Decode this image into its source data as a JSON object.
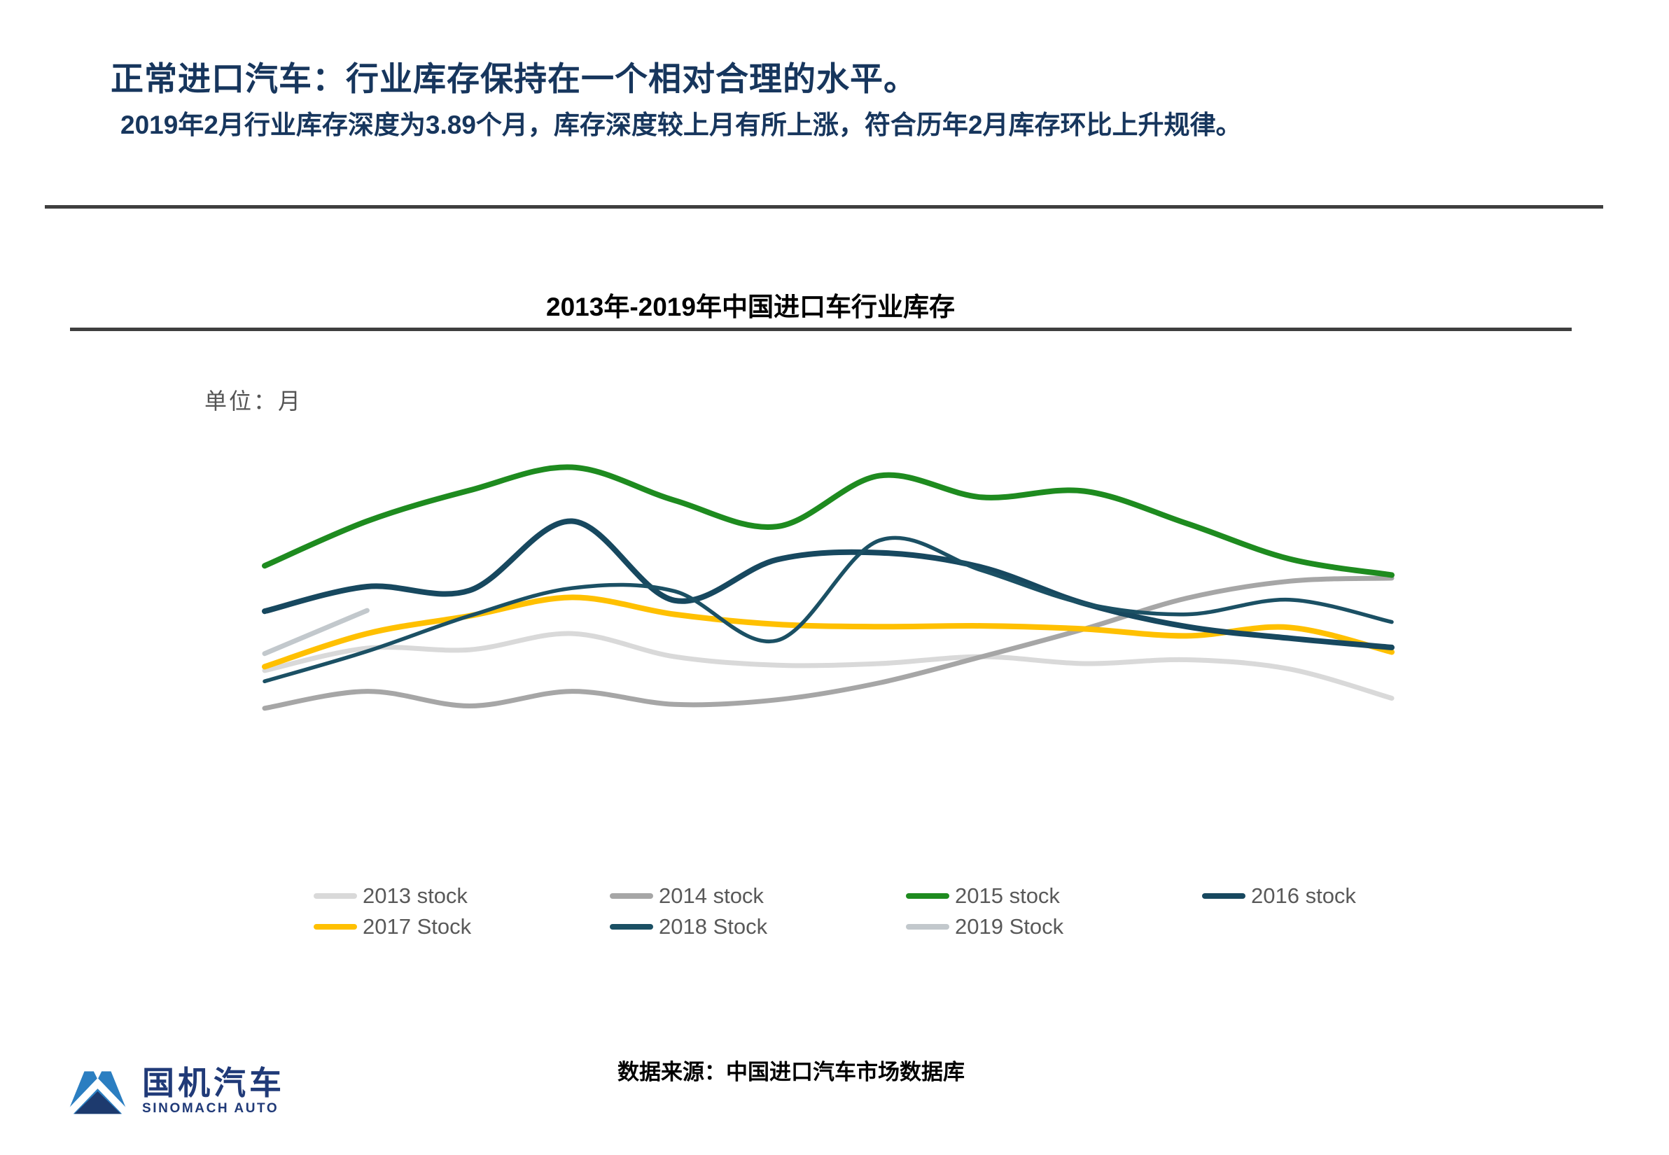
{
  "slide": {
    "title": "正常进口汽车：行业库存保持在一个相对合理的水平。",
    "subtitle": "2019年2月行业库存深度为3.89个月，库存深度较上月有所上涨，符合历年2月库存环比上升规律。",
    "source": "数据来源：中国进口汽车市场数据库"
  },
  "logo": {
    "name_cn": "国机汽车",
    "name_en": "SINOMACH AUTO",
    "icon": "mountain-logo-icon",
    "color_light_blue": "#2b7ec1",
    "color_navy": "#1d3a6e"
  },
  "chart_data": {
    "type": "line",
    "title": "2013年-2019年中国进口车行业库存",
    "unit_label": "单位：月",
    "x_values": [
      1,
      2,
      3,
      4,
      5,
      6,
      7,
      8,
      9,
      10,
      11,
      12
    ],
    "x_axis_labels_visible": false,
    "y_axis_labels_visible": false,
    "grid": false,
    "ylim": [
      2,
      6
    ],
    "ylabel": "月",
    "legend_position": "bottom",
    "series": [
      {
        "name": "2013 stock",
        "color": "#d9d9d9",
        "values": [
          3.11,
          3.4,
          3.38,
          3.59,
          3.29,
          3.18,
          3.2,
          3.29,
          3.2,
          3.25,
          3.13,
          2.75
        ]
      },
      {
        "name": "2014 stock",
        "color": "#a6a6a6",
        "values": [
          2.62,
          2.84,
          2.65,
          2.84,
          2.67,
          2.73,
          2.95,
          3.29,
          3.65,
          4.05,
          4.27,
          4.31
        ]
      },
      {
        "name": "2015 stock",
        "color": "#1e8b1f",
        "values": [
          4.47,
          5.05,
          5.45,
          5.75,
          5.32,
          4.98,
          5.64,
          5.36,
          5.44,
          5.02,
          4.56,
          4.35
        ]
      },
      {
        "name": "2016 stock",
        "color": "#17485f",
        "values": [
          3.88,
          4.2,
          4.15,
          5.05,
          4.02,
          4.55,
          4.64,
          4.45,
          3.98,
          3.68,
          3.53,
          3.41
        ]
      },
      {
        "name": "2017 Stock",
        "color": "#ffc000",
        "values": [
          3.16,
          3.59,
          3.82,
          4.06,
          3.84,
          3.71,
          3.68,
          3.69,
          3.65,
          3.56,
          3.67,
          3.35
        ]
      },
      {
        "name": "2018 Stock",
        "color": "#1b5064",
        "values": [
          2.97,
          3.36,
          3.82,
          4.18,
          4.14,
          3.5,
          4.8,
          4.41,
          3.98,
          3.84,
          4.03,
          3.74
        ]
      },
      {
        "name": "2019 Stock",
        "color": "#c2c8cc",
        "values": [
          3.33,
          3.89
        ]
      }
    ]
  }
}
